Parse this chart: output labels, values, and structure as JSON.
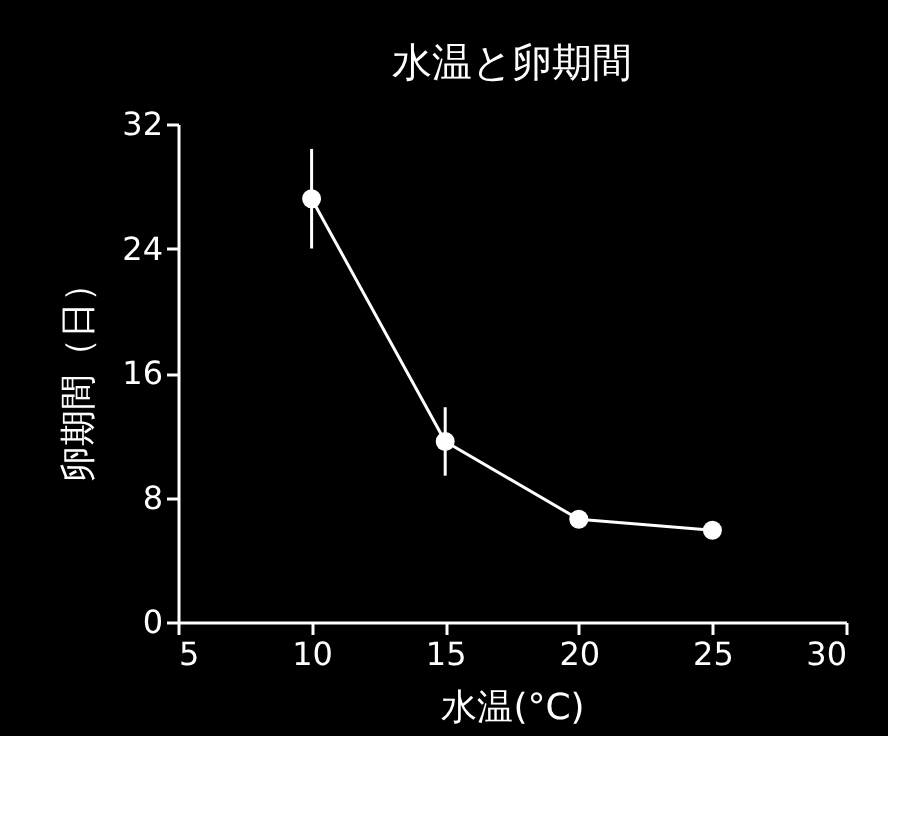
{
  "chart_data": {
    "type": "line",
    "title": "水温と卵期間",
    "xlabel": "水温(°C)",
    "ylabel": "卵期間（日）",
    "x": [
      10,
      15,
      20,
      25
    ],
    "series": [
      {
        "color": "#ffffff",
        "values": [
          27.2,
          11.6,
          6.6,
          5.9
        ],
        "errors": [
          3.2,
          2.2,
          null,
          null
        ]
      }
    ],
    "xlim": [
      5,
      30
    ],
    "xticks": [
      5,
      10,
      15,
      20,
      25,
      30
    ],
    "ylim": [
      0,
      32
    ],
    "yticks": [
      0,
      8,
      16,
      24,
      32
    ],
    "marker": "circle",
    "line_style": "solid",
    "grid": false
  }
}
